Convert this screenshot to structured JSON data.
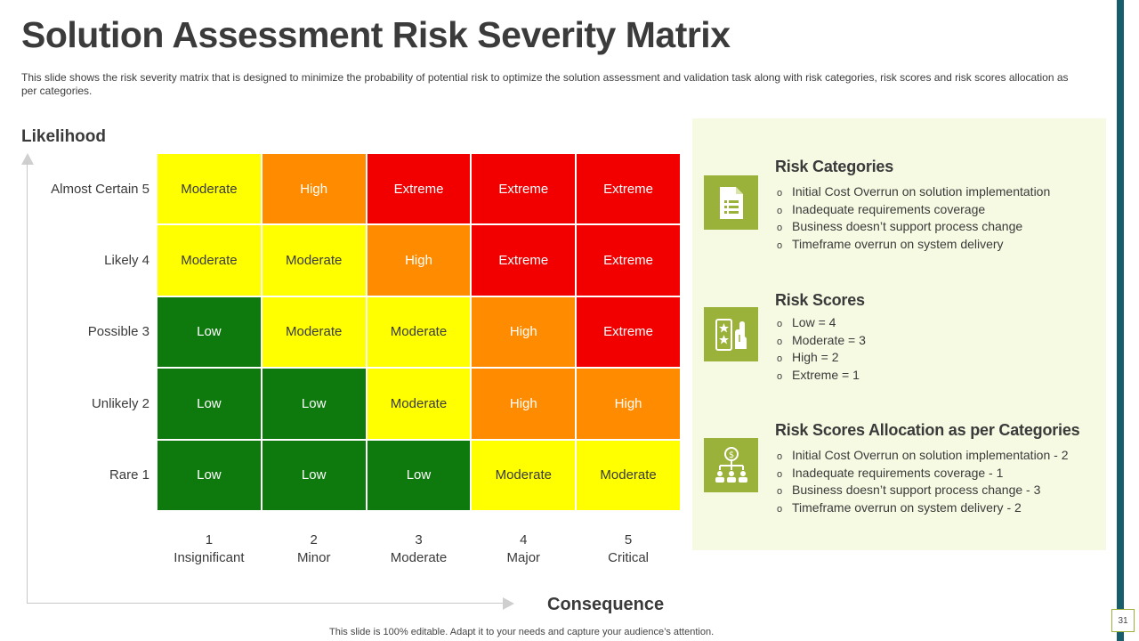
{
  "title": "Solution Assessment Risk Severity Matrix",
  "subtitle": "This slide shows the risk severity matrix that is designed to minimize the probability of potential risk to optimize the solution assessment and validation task along with risk categories, risk scores and risk scores allocation as per categories.",
  "y_axis_label": "Likelihood",
  "x_axis_label": "Consequence",
  "rows": [
    {
      "label": "Almost Certain 5",
      "cells": [
        "Moderate",
        "High",
        "Extreme",
        "Extreme",
        "Extreme"
      ]
    },
    {
      "label": "Likely 4",
      "cells": [
        "Moderate",
        "Moderate",
        "High",
        "Extreme",
        "Extreme"
      ]
    },
    {
      "label": "Possible 3",
      "cells": [
        "Low",
        "Moderate",
        "Moderate",
        "High",
        "Extreme"
      ]
    },
    {
      "label": "Unlikely  2",
      "cells": [
        "Low",
        "Low",
        "Moderate",
        "High",
        "High"
      ]
    },
    {
      "label": "Rare 1",
      "cells": [
        "Low",
        "Low",
        "Low",
        "Moderate",
        "Moderate"
      ]
    }
  ],
  "columns": [
    {
      "num": "1",
      "name": "Insignificant"
    },
    {
      "num": "2",
      "name": "Minor"
    },
    {
      "num": "3",
      "name": "Moderate"
    },
    {
      "num": "4",
      "name": "Major"
    },
    {
      "num": "5",
      "name": "Critical"
    }
  ],
  "severity_colors": {
    "Low": "#0e7a0d",
    "Moderate": "#ffff00",
    "High": "#ff8c00",
    "Extreme": "#f20000"
  },
  "panel": {
    "background": "#f7fae3",
    "icon_color": "#9ab23a",
    "sections": [
      {
        "icon": "document-list-icon",
        "title": "Risk Categories",
        "items": [
          "Initial Cost Overrun on solution implementation",
          "Inadequate requirements coverage",
          "Business doesn’t support process change",
          "Timeframe overrun on system delivery"
        ]
      },
      {
        "icon": "rating-hand-icon",
        "title": "Risk Scores",
        "items": [
          "Low = 4",
          "Moderate  = 3",
          "High = 2",
          "Extreme = 1"
        ]
      },
      {
        "icon": "money-hierarchy-icon",
        "title": "Risk Scores Allocation as per Categories",
        "items": [
          "Initial Cost Overrun on solution implementation - 2",
          "Inadequate requirements coverage - 1",
          "Business doesn’t support process change - 3",
          "Timeframe overrun on system delivery - 2"
        ]
      }
    ]
  },
  "footer": "This slide is 100% editable. Adapt it to your needs and capture your audience’s attention.",
  "page_number": "31"
}
